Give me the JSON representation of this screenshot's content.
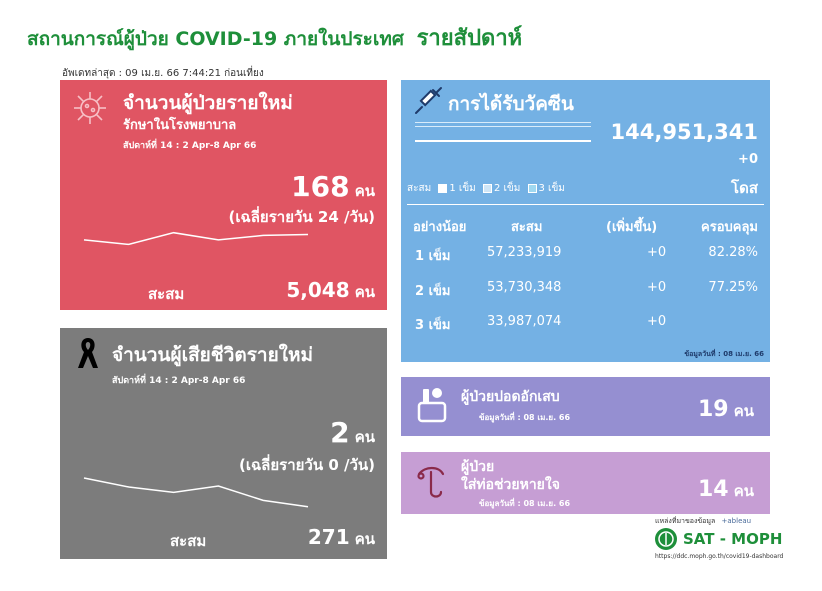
{
  "header": {
    "title": "สถานการณ์ผู้ป่วย COVID-19 ภายในประเทศ",
    "title_emphasis": "รายสัปดาห์",
    "updated": "อัพเดทล่าสุด : 09 เม.ย. 66 7:44:21 ก่อนเที่ยง"
  },
  "new_cases": {
    "title": "จำนวนผู้ป่วยรายใหม่",
    "subtitle": "รักษาในโรงพยาบาล",
    "week": "สัปดาห์ที่ 14 : 2 Apr-8 Apr 66",
    "count": "168",
    "unit": "คน",
    "daily_avg": "(เฉลี่ยรายวัน 24 /วัน)",
    "cumulative_label": "สะสม",
    "cumulative_value": "5,048",
    "cumulative_unit": "คน"
  },
  "deaths": {
    "title": "จำนวนผู้เสียชีวิตรายใหม่",
    "week": "สัปดาห์ที่ 14 : 2 Apr-8 Apr 66",
    "count": "2",
    "unit": "คน",
    "daily_avg": "(เฉลี่ยรายวัน 0 /วัน)",
    "cumulative_label": "สะสม",
    "cumulative_value": "271",
    "cumulative_unit": "คน"
  },
  "vaccine": {
    "title": "การได้รับวัคซีน",
    "total": "144,951,341",
    "delta": "+0",
    "dose_unit": "โดส",
    "legend_label": "สะสม",
    "legend": [
      "1 เข็ม",
      "2 เข็ม",
      "3 เข็ม"
    ],
    "legend_colors": [
      "#ffffff",
      "#cfe6f7",
      "#9fd8f0"
    ],
    "table_headers": [
      "อย่างน้อย",
      "สะสม",
      "(เพิ่มขึ้น)",
      "ครอบคลุม"
    ],
    "rows": [
      {
        "dose": "1 เข็ม",
        "cumulative": "57,233,919",
        "increase": "+0",
        "coverage": "82.28%"
      },
      {
        "dose": "2 เข็ม",
        "cumulative": "53,730,348",
        "increase": "+0",
        "coverage": "77.25%"
      },
      {
        "dose": "3 เข็ม",
        "cumulative": "33,987,074",
        "increase": "+0",
        "coverage": ""
      }
    ],
    "data_date": "ข้อมูลวันที่ : 08 เม.ย. 66"
  },
  "pneumonia": {
    "title": "ผู้ป่วยปอดอักเสบ",
    "data_date": "ข้อมูลวันที่ : 08 เม.ย. 66",
    "count": "19",
    "unit": "คน"
  },
  "ventilator": {
    "title_line1": "ผู้ป่วย",
    "title_line2": "ใส่ท่อช่วยหายใจ",
    "data_date": "ข้อมูลวันที่ : 08 เม.ย. 66",
    "count": "14",
    "unit": "คน"
  },
  "footer": {
    "source_label": "แหล่งที่มาของข้อมูล",
    "tableau": "+ableau",
    "logo_text": "SAT - MOPH",
    "url": "https://ddc.moph.go.th/covid19-dashboard"
  },
  "sparklines": {
    "new_cases": [
      0.45,
      0.2,
      0.85,
      0.45,
      0.7,
      0.75
    ],
    "deaths": [
      1.0,
      0.72,
      0.55,
      0.75,
      0.3,
      0.1
    ]
  },
  "colors": {
    "new_cases_bg": "#e05563",
    "deaths_bg": "#7c7c7c",
    "vaccine_bg": "#74b1e4",
    "pneumonia_bg": "#958fd1",
    "ventilator_bg": "#c69ed4",
    "title_green": "#1e8f3a"
  }
}
